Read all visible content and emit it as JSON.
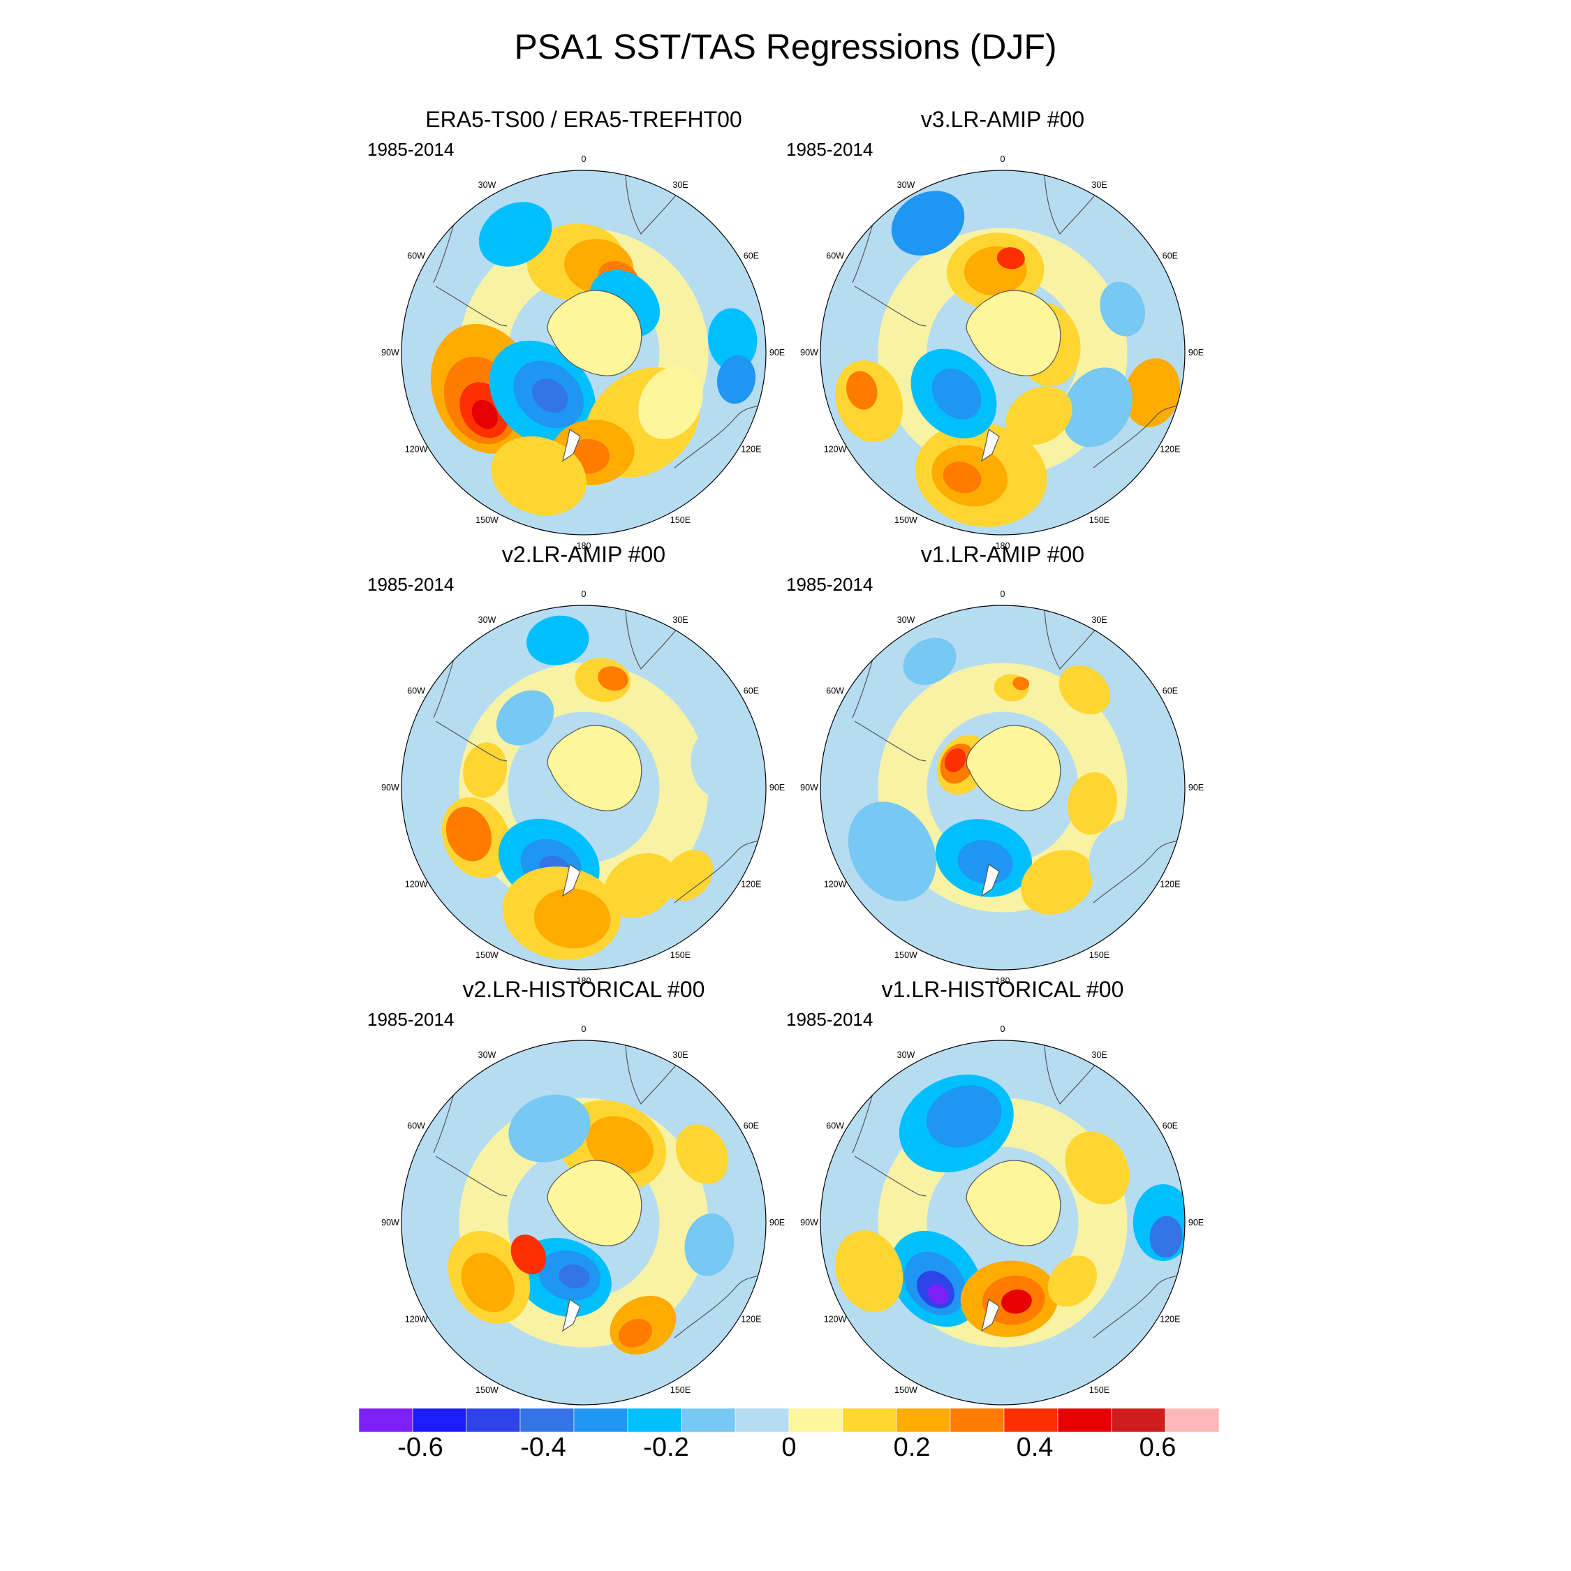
{
  "title": "PSA1 SST/TAS Regressions (DJF)",
  "panels": [
    {
      "id": "era5",
      "title": "ERA5-TS00 / ERA5-TREFHT00",
      "period": "1985-2014"
    },
    {
      "id": "v3amip",
      "title": "v3.LR-AMIP  #00",
      "period": "1985-2014"
    },
    {
      "id": "v2amip",
      "title": "v2.LR-AMIP  #00",
      "period": "1985-2014"
    },
    {
      "id": "v1amip",
      "title": "v1.LR-AMIP  #00",
      "period": "1985-2014"
    },
    {
      "id": "v2hist",
      "title": "v2.LR-HISTORICAL  #00",
      "period": "1985-2014"
    },
    {
      "id": "v1hist",
      "title": "v1.LR-HISTORICAL  #00",
      "period": "1985-2014"
    }
  ],
  "longitude_labels": [
    "0",
    "30E",
    "60E",
    "90E",
    "120E",
    "150E",
    "180",
    "150W",
    "120W",
    "90W",
    "60W",
    "30W"
  ],
  "colorbar": {
    "colors": [
      "#7d1ff5",
      "#1c1cff",
      "#2f44e8",
      "#3375e6",
      "#1e96f2",
      "#00bfff",
      "#77c8f2",
      "#b6dcf2",
      "#fff59b",
      "#ffd532",
      "#ffab00",
      "#ff7c00",
      "#ff2f00",
      "#e60000",
      "#cf1d1d",
      "#ffb8b8"
    ],
    "tick_labels": [
      "-0.6",
      "-0.4",
      "-0.2",
      "0",
      "0.2",
      "0.4",
      "0.6"
    ],
    "tick_values": [
      -0.6,
      -0.4,
      -0.2,
      0,
      0.2,
      0.4,
      0.6
    ],
    "range": [
      -0.7,
      0.7
    ]
  }
}
